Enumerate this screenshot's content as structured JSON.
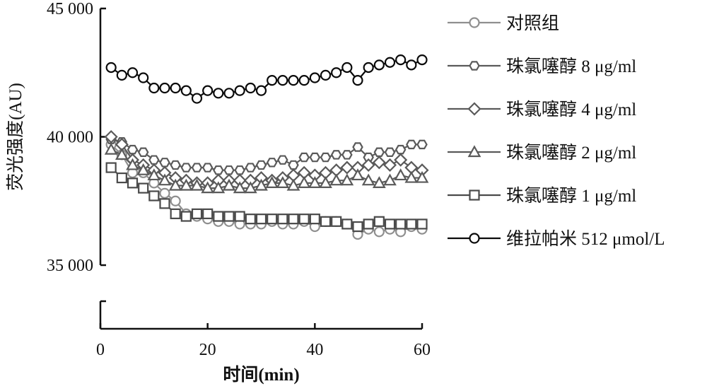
{
  "chart_data": {
    "type": "line",
    "title": "",
    "xlabel": "时间(min)",
    "ylabel": "荧光强度(AU)",
    "xlim": [
      0,
      60
    ],
    "ylim": [
      35000,
      45000
    ],
    "xticks": [
      0,
      20,
      40,
      60
    ],
    "yticks": [
      35000,
      40000,
      45000
    ],
    "xtick_labels": [
      "0",
      "20",
      "40",
      "60"
    ],
    "ytick_labels": [
      "35 000",
      "40 000",
      "45 000"
    ],
    "axis_break": true,
    "grid": false,
    "legend_position": "right",
    "x": [
      2,
      4,
      6,
      8,
      10,
      12,
      14,
      16,
      18,
      20,
      22,
      24,
      26,
      28,
      30,
      32,
      34,
      36,
      38,
      40,
      42,
      44,
      46,
      48,
      50,
      52,
      54,
      56,
      58,
      60
    ],
    "series": [
      {
        "name": "对照组",
        "marker": "circle",
        "color": "#8f8f8f",
        "values": [
          39700,
          39300,
          38600,
          38600,
          38200,
          37800,
          37500,
          37000,
          36900,
          36800,
          36700,
          36700,
          36600,
          36600,
          36600,
          36700,
          36600,
          36600,
          36700,
          36500,
          36700,
          36700,
          36600,
          36200,
          36400,
          36300,
          36400,
          36300,
          36500,
          36400
        ]
      },
      {
        "name": "珠氯噻醇 8 μg/ml",
        "marker": "hexagon",
        "color": "#5a5a5a",
        "values": [
          39900,
          39800,
          39500,
          39400,
          39100,
          39000,
          38900,
          38800,
          38800,
          38800,
          38700,
          38700,
          38700,
          38800,
          38900,
          39000,
          39100,
          38900,
          39200,
          39200,
          39200,
          39300,
          39300,
          39600,
          39200,
          39400,
          39400,
          39500,
          39700,
          39700
        ]
      },
      {
        "name": "珠氯噻醇 4 μg/ml",
        "marker": "diamond",
        "color": "#5a5a5a",
        "values": [
          40000,
          39700,
          39100,
          38900,
          38700,
          38600,
          38400,
          38300,
          38200,
          38200,
          38300,
          38300,
          38300,
          38300,
          38400,
          38300,
          38400,
          38500,
          38600,
          38500,
          38600,
          38700,
          38800,
          38800,
          38900,
          39000,
          38900,
          39100,
          38800,
          38700
        ]
      },
      {
        "name": "珠氯噻醇 2 μg/ml",
        "marker": "triangle",
        "color": "#5a5a5a",
        "values": [
          39500,
          39300,
          38900,
          38700,
          38500,
          38300,
          38100,
          38100,
          38100,
          38000,
          38000,
          38100,
          38000,
          38000,
          38100,
          38200,
          38200,
          38100,
          38200,
          38200,
          38200,
          38300,
          38300,
          38500,
          38300,
          38200,
          38300,
          38500,
          38400,
          38400
        ]
      },
      {
        "name": "珠氯噻醇 1 μg/ml",
        "marker": "square",
        "color": "#4a4a4a",
        "values": [
          38800,
          38400,
          38200,
          38000,
          37700,
          37400,
          37000,
          36900,
          37000,
          37000,
          36900,
          36900,
          36900,
          36800,
          36800,
          36800,
          36800,
          36800,
          36800,
          36800,
          36700,
          36700,
          36600,
          36500,
          36600,
          36700,
          36600,
          36600,
          36600,
          36600
        ]
      },
      {
        "name": "维拉帕米 512 μmol/L",
        "marker": "circle",
        "color": "#0a0a0a",
        "values": [
          42700,
          42400,
          42500,
          42300,
          41900,
          41900,
          41900,
          41800,
          41500,
          41800,
          41700,
          41700,
          41800,
          41900,
          41800,
          42200,
          42200,
          42200,
          42200,
          42300,
          42400,
          42500,
          42700,
          42200,
          42700,
          42800,
          42900,
          43000,
          42800,
          43000
        ]
      }
    ]
  }
}
